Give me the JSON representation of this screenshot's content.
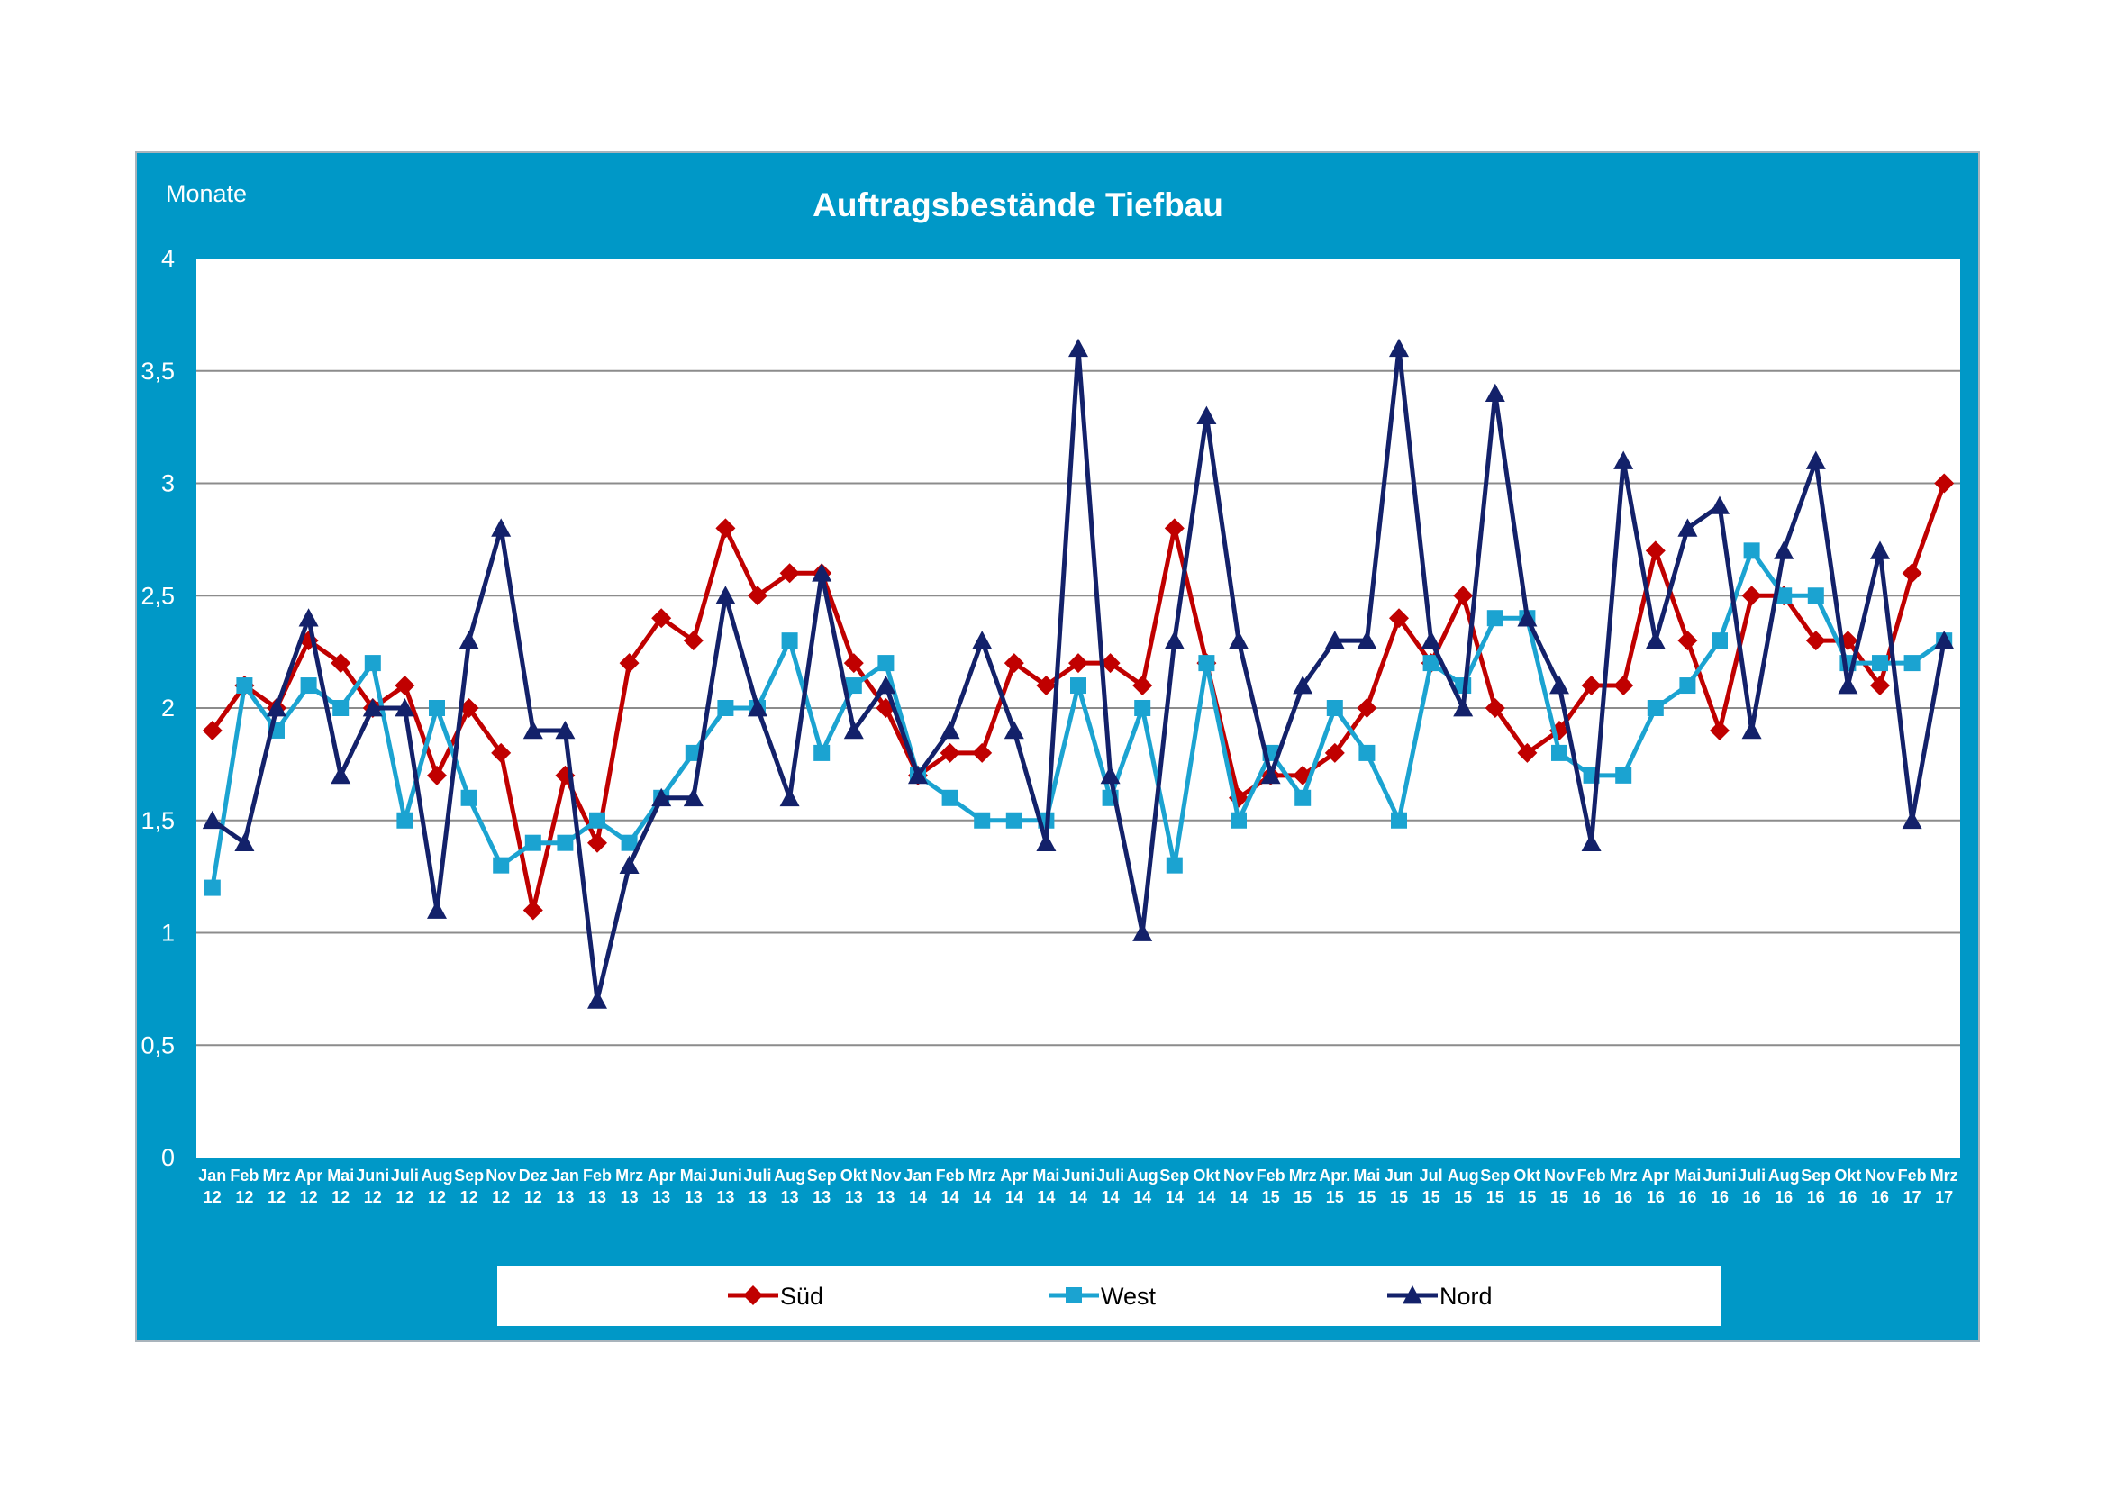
{
  "chart_data": {
    "type": "line",
    "title": "Auftragsbestände Tiefbau",
    "ylabel": "Monate",
    "ylim": [
      0,
      4
    ],
    "yticks": [
      "0",
      "0,5",
      "1",
      "1,5",
      "2",
      "2,5",
      "3",
      "3,5",
      "4"
    ],
    "grid": true,
    "legend_position": "bottom",
    "categories": [
      [
        "Jan",
        "12"
      ],
      [
        "Feb",
        "12"
      ],
      [
        "Mrz",
        "12"
      ],
      [
        "Apr",
        "12"
      ],
      [
        "Mai",
        "12"
      ],
      [
        "Juni",
        "12"
      ],
      [
        "Juli",
        "12"
      ],
      [
        "Aug",
        "12"
      ],
      [
        "Sep",
        "12"
      ],
      [
        "Nov",
        "12"
      ],
      [
        "Dez",
        "12"
      ],
      [
        "Jan",
        "13"
      ],
      [
        "Feb",
        "13"
      ],
      [
        "Mrz",
        "13"
      ],
      [
        "Apr",
        "13"
      ],
      [
        "Mai",
        "13"
      ],
      [
        "Juni",
        "13"
      ],
      [
        "Juli",
        "13"
      ],
      [
        "Aug",
        "13"
      ],
      [
        "Sep",
        "13"
      ],
      [
        "Okt",
        "13"
      ],
      [
        "Nov",
        "13"
      ],
      [
        "Jan",
        "14"
      ],
      [
        "Feb",
        "14"
      ],
      [
        "Mrz",
        "14"
      ],
      [
        "Apr",
        "14"
      ],
      [
        "Mai",
        "14"
      ],
      [
        "Juni",
        "14"
      ],
      [
        "Juli",
        "14"
      ],
      [
        "Aug",
        "14"
      ],
      [
        "Sep",
        "14"
      ],
      [
        "Okt",
        "14"
      ],
      [
        "Nov",
        "14"
      ],
      [
        "Feb",
        "15"
      ],
      [
        "Mrz",
        "15"
      ],
      [
        "Apr.",
        "15"
      ],
      [
        "Mai",
        "15"
      ],
      [
        "Jun",
        "15"
      ],
      [
        "Jul",
        "15"
      ],
      [
        "Aug",
        "15"
      ],
      [
        "Sep",
        "15"
      ],
      [
        "Okt",
        "15"
      ],
      [
        "Nov",
        "15"
      ],
      [
        "Feb",
        "16"
      ],
      [
        "Mrz",
        "16"
      ],
      [
        "Apr",
        "16"
      ],
      [
        "Mai",
        "16"
      ],
      [
        "Juni",
        "16"
      ],
      [
        "Juli",
        "16"
      ],
      [
        "Aug",
        "16"
      ],
      [
        "Sep",
        "16"
      ],
      [
        "Okt",
        "16"
      ],
      [
        "Nov",
        "16"
      ],
      [
        "Feb",
        "17"
      ],
      [
        "Mrz",
        "17"
      ]
    ],
    "series": [
      {
        "name": "Süd",
        "color": "#c00000",
        "marker": "diamond",
        "values": [
          1.9,
          2.1,
          2.0,
          2.3,
          2.2,
          2.0,
          2.1,
          1.7,
          2.0,
          1.8,
          1.1,
          1.7,
          1.4,
          2.2,
          2.4,
          2.3,
          2.8,
          2.5,
          2.6,
          2.6,
          2.2,
          2.0,
          1.7,
          1.8,
          1.8,
          2.2,
          2.1,
          2.2,
          2.2,
          2.1,
          2.8,
          2.2,
          1.6,
          1.7,
          1.7,
          1.8,
          2.0,
          2.4,
          2.2,
          2.5,
          2.0,
          1.8,
          1.9,
          2.1,
          2.1,
          2.7,
          2.3,
          1.9,
          2.5,
          2.5,
          2.3,
          2.3,
          2.1,
          2.6,
          3.0
        ]
      },
      {
        "name": "West",
        "color": "#1ba3d1",
        "marker": "square",
        "values": [
          1.2,
          2.1,
          1.9,
          2.1,
          2.0,
          2.2,
          1.5,
          2.0,
          1.6,
          1.3,
          1.4,
          1.4,
          1.5,
          1.4,
          1.6,
          1.8,
          2.0,
          2.0,
          2.3,
          1.8,
          2.1,
          2.2,
          1.7,
          1.6,
          1.5,
          1.5,
          1.5,
          2.1,
          1.6,
          2.0,
          1.3,
          2.2,
          1.5,
          1.8,
          1.6,
          2.0,
          1.8,
          1.5,
          2.2,
          2.1,
          2.4,
          2.4,
          1.8,
          1.7,
          1.7,
          2.0,
          2.1,
          2.3,
          2.7,
          2.5,
          2.5,
          2.2,
          2.2,
          2.2,
          2.3
        ]
      },
      {
        "name": "Nord",
        "color": "#13216a",
        "marker": "triangle",
        "values": [
          1.5,
          1.4,
          2.0,
          2.4,
          1.7,
          2.0,
          2.0,
          1.1,
          2.3,
          2.8,
          1.9,
          1.9,
          0.7,
          1.3,
          1.6,
          1.6,
          2.5,
          2.0,
          1.6,
          2.6,
          1.9,
          2.1,
          1.7,
          1.9,
          2.3,
          1.9,
          1.4,
          3.6,
          1.7,
          1.0,
          2.3,
          3.3,
          2.3,
          1.7,
          2.1,
          2.3,
          2.3,
          3.6,
          2.3,
          2.0,
          3.4,
          2.4,
          2.1,
          1.4,
          3.1,
          2.3,
          2.8,
          2.9,
          1.9,
          2.7,
          3.1,
          2.1,
          2.7,
          1.5,
          2.3
        ]
      }
    ]
  }
}
